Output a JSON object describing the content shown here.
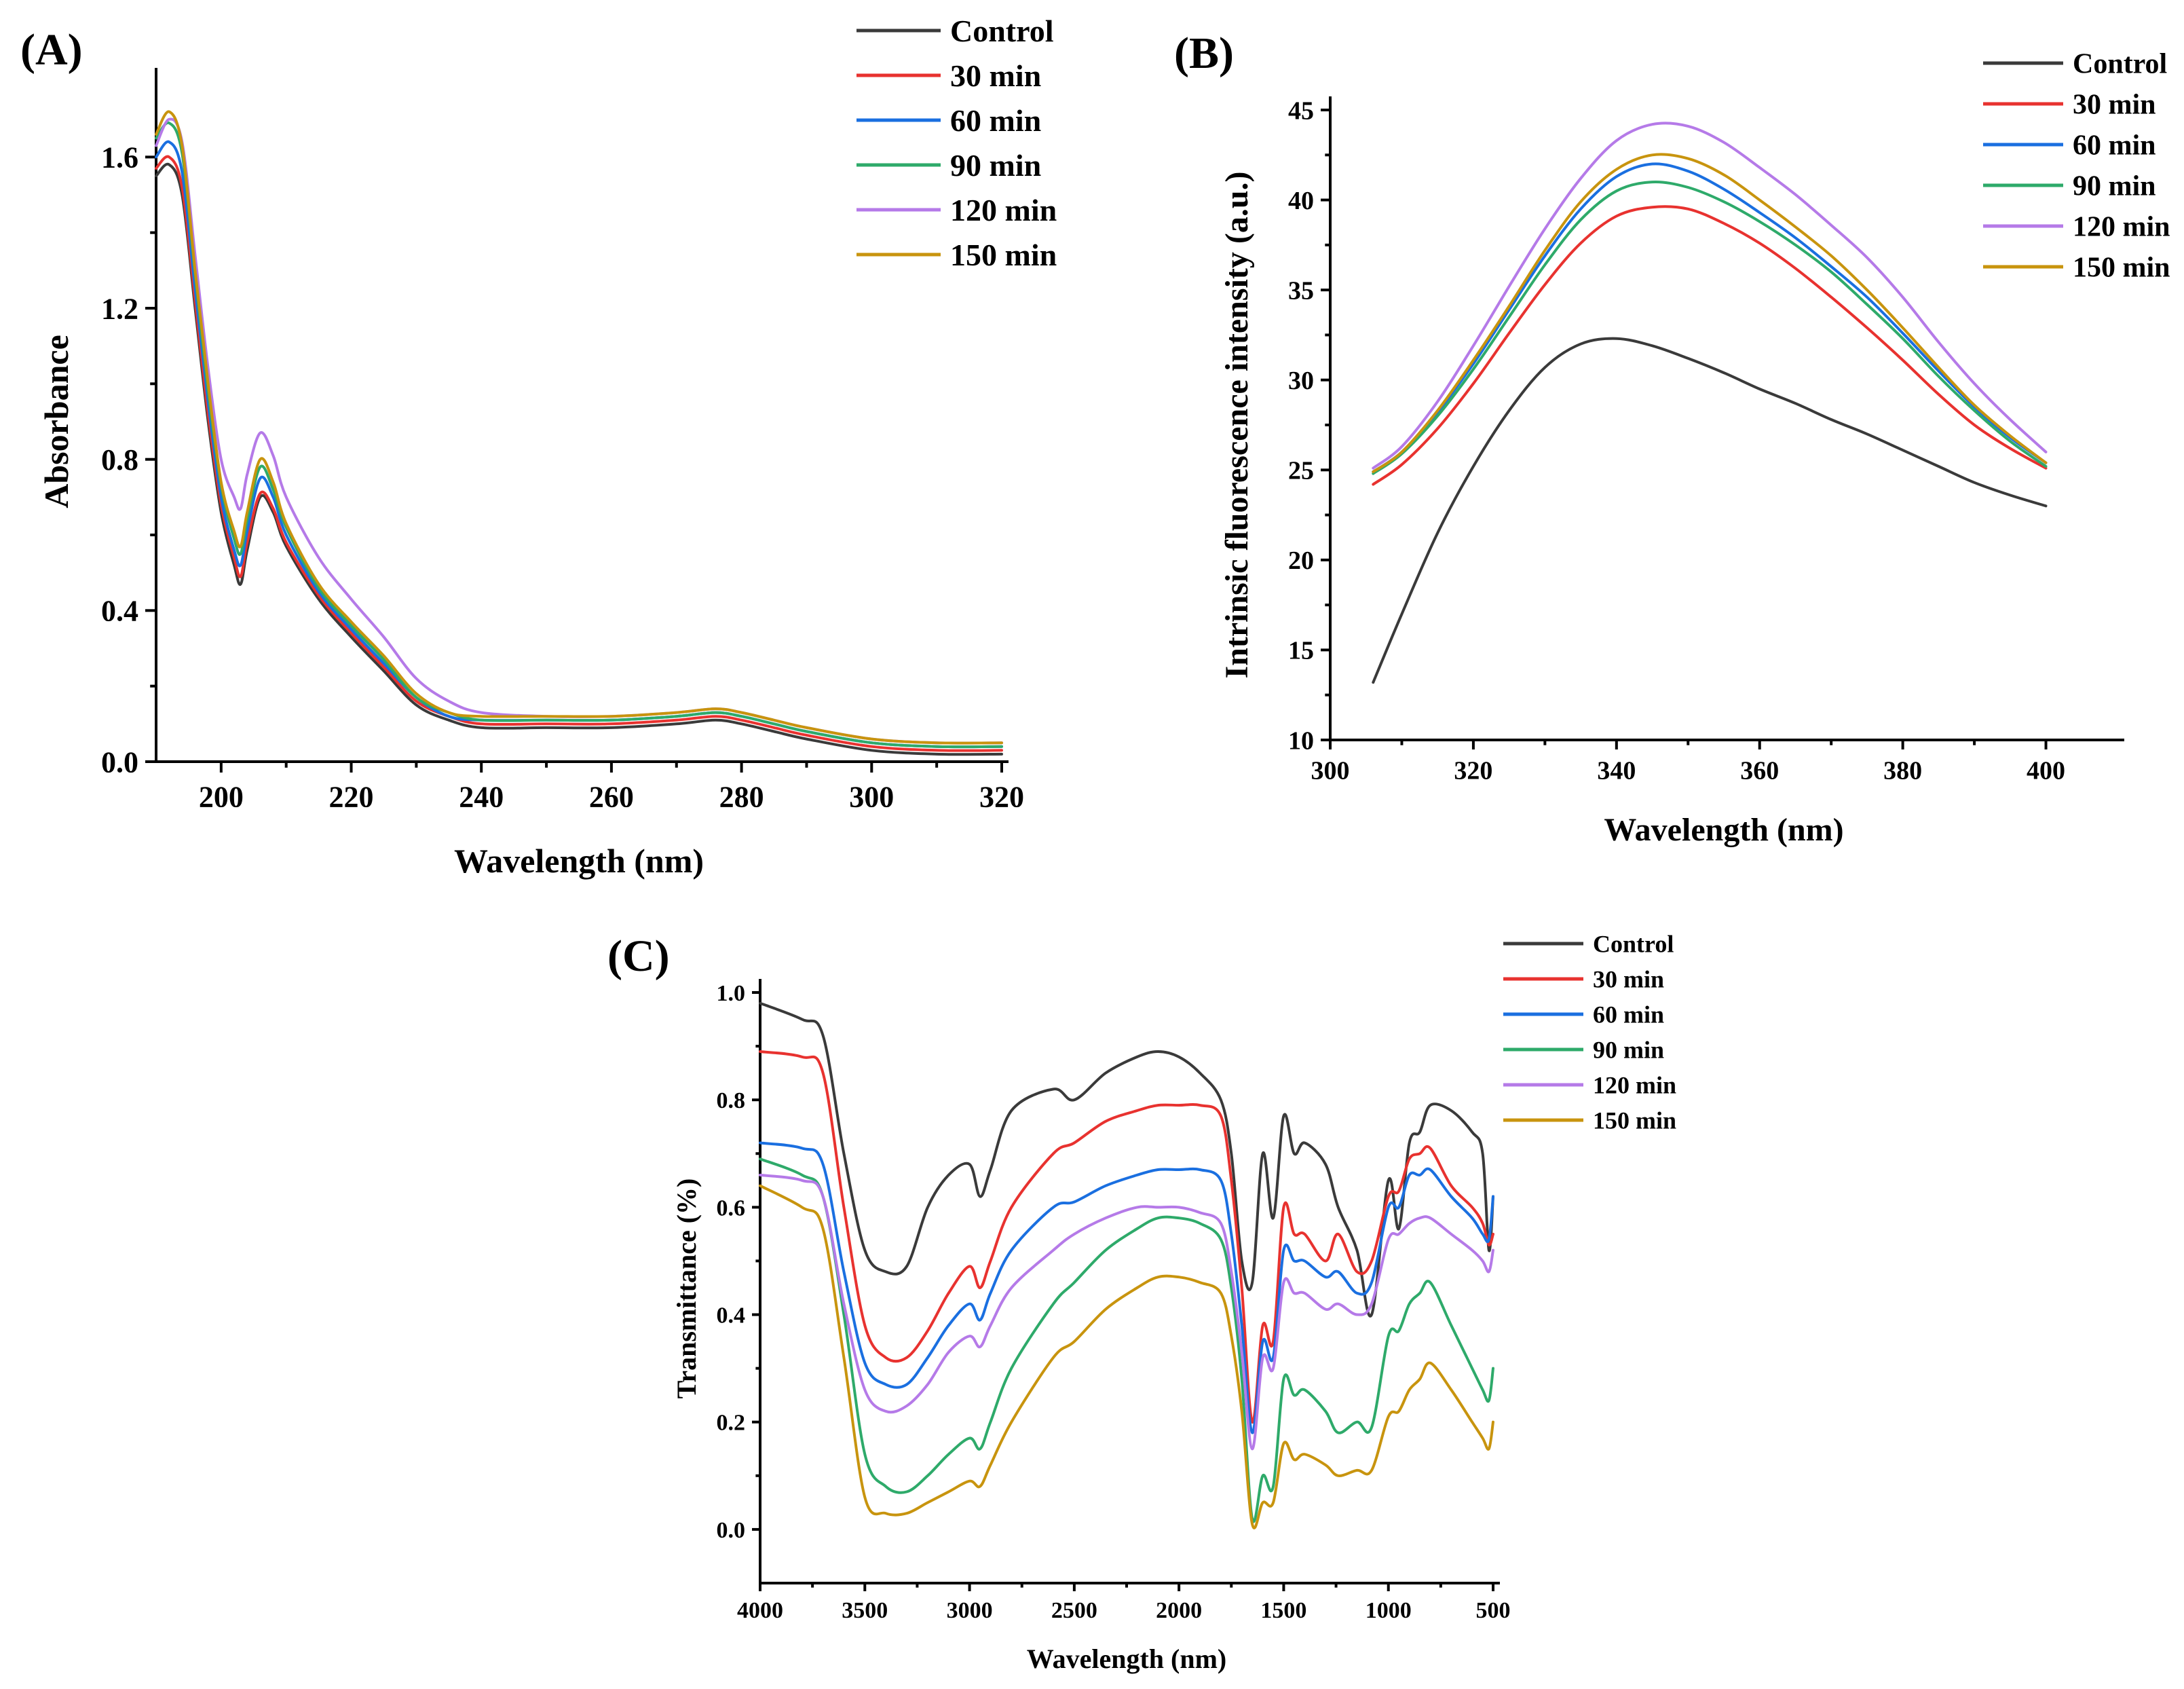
{
  "chart_data": [
    {
      "panel": "(A)",
      "type": "line",
      "xlabel": "Wavelength (nm)",
      "ylabel": "Absorbance",
      "xlim": [
        190,
        320
      ],
      "ylim": [
        0,
        1.8
      ],
      "xticks": [
        200,
        220,
        240,
        260,
        280,
        300,
        320
      ],
      "yticks": [
        0.0,
        0.4,
        0.8,
        1.2,
        1.6
      ],
      "ytick_labels": [
        "0.0",
        "0.4",
        "0.8",
        "1.2",
        "1.6"
      ],
      "x": [
        190,
        192,
        194,
        196,
        198,
        200,
        202,
        203,
        204,
        206,
        208,
        210,
        215,
        220,
        225,
        230,
        235,
        240,
        250,
        260,
        270,
        276,
        280,
        285,
        290,
        300,
        310,
        320
      ],
      "series": [
        {
          "name": "Control",
          "color": "#3a3a3a",
          "values": [
            1.55,
            1.58,
            1.5,
            1.2,
            0.9,
            0.66,
            0.52,
            0.47,
            0.56,
            0.7,
            0.66,
            0.57,
            0.43,
            0.33,
            0.24,
            0.15,
            0.11,
            0.09,
            0.09,
            0.09,
            0.1,
            0.11,
            0.1,
            0.08,
            0.06,
            0.03,
            0.02,
            0.02
          ]
        },
        {
          "name": "30 min",
          "color": "#e8322f",
          "values": [
            1.57,
            1.6,
            1.52,
            1.22,
            0.92,
            0.68,
            0.54,
            0.49,
            0.58,
            0.71,
            0.67,
            0.58,
            0.44,
            0.34,
            0.25,
            0.16,
            0.12,
            0.1,
            0.1,
            0.1,
            0.11,
            0.12,
            0.11,
            0.09,
            0.07,
            0.04,
            0.03,
            0.03
          ]
        },
        {
          "name": "60 min",
          "color": "#1a6fe0",
          "values": [
            1.6,
            1.64,
            1.56,
            1.25,
            0.95,
            0.7,
            0.56,
            0.52,
            0.61,
            0.75,
            0.7,
            0.6,
            0.45,
            0.35,
            0.26,
            0.17,
            0.12,
            0.11,
            0.11,
            0.11,
            0.12,
            0.13,
            0.12,
            0.1,
            0.08,
            0.05,
            0.04,
            0.04
          ]
        },
        {
          "name": "90 min",
          "color": "#2eaa6a",
          "values": [
            1.65,
            1.69,
            1.61,
            1.29,
            0.98,
            0.73,
            0.59,
            0.55,
            0.64,
            0.78,
            0.72,
            0.62,
            0.46,
            0.36,
            0.27,
            0.17,
            0.13,
            0.11,
            0.11,
            0.11,
            0.12,
            0.13,
            0.12,
            0.1,
            0.08,
            0.05,
            0.04,
            0.04
          ]
        },
        {
          "name": "120 min",
          "color": "#b57ae8",
          "values": [
            1.63,
            1.7,
            1.64,
            1.34,
            1.04,
            0.8,
            0.7,
            0.67,
            0.76,
            0.87,
            0.81,
            0.7,
            0.54,
            0.43,
            0.33,
            0.22,
            0.16,
            0.13,
            0.12,
            0.12,
            0.13,
            0.14,
            0.13,
            0.11,
            0.09,
            0.06,
            0.05,
            0.05
          ]
        },
        {
          "name": "150 min",
          "color": "#c8940e",
          "values": [
            1.66,
            1.72,
            1.63,
            1.3,
            1.0,
            0.74,
            0.61,
            0.57,
            0.66,
            0.8,
            0.74,
            0.63,
            0.47,
            0.37,
            0.28,
            0.18,
            0.13,
            0.12,
            0.12,
            0.12,
            0.13,
            0.14,
            0.13,
            0.11,
            0.09,
            0.06,
            0.05,
            0.05
          ]
        }
      ]
    },
    {
      "panel": "(B)",
      "type": "line",
      "xlabel": "Wavelength (nm)",
      "ylabel": "Intrinsic fluorescence intensity (a.u.)",
      "xlim": [
        300,
        410
      ],
      "ylim": [
        10,
        45
      ],
      "xticks": [
        300,
        320,
        340,
        360,
        380,
        400
      ],
      "yticks": [
        10,
        15,
        20,
        25,
        30,
        35,
        40,
        45
      ],
      "x": [
        306,
        310,
        315,
        320,
        325,
        330,
        335,
        340,
        345,
        350,
        355,
        360,
        365,
        370,
        375,
        380,
        385,
        390,
        395,
        400
      ],
      "series": [
        {
          "name": "Control",
          "color": "#3a3a3a",
          "values": [
            13.2,
            17.0,
            21.5,
            25.2,
            28.3,
            30.7,
            32.0,
            32.3,
            31.9,
            31.2,
            30.4,
            29.5,
            28.7,
            27.8,
            27.0,
            26.1,
            25.2,
            24.3,
            23.6,
            23.0
          ]
        },
        {
          "name": "30 min",
          "color": "#e8322f",
          "values": [
            24.2,
            25.3,
            27.3,
            29.8,
            32.6,
            35.3,
            37.6,
            39.1,
            39.6,
            39.5,
            38.7,
            37.6,
            36.2,
            34.6,
            32.9,
            31.1,
            29.2,
            27.5,
            26.2,
            25.1
          ]
        },
        {
          "name": "60 min",
          "color": "#1a6fe0",
          "values": [
            24.9,
            26.0,
            28.2,
            30.9,
            33.9,
            36.9,
            39.5,
            41.3,
            42.0,
            41.6,
            40.6,
            39.3,
            37.9,
            36.3,
            34.6,
            32.6,
            30.5,
            28.5,
            26.8,
            25.4
          ]
        },
        {
          "name": "90 min",
          "color": "#2eaa6a",
          "values": [
            24.8,
            25.9,
            28.0,
            30.6,
            33.5,
            36.4,
            38.9,
            40.5,
            41.0,
            40.7,
            39.9,
            38.8,
            37.5,
            36.0,
            34.2,
            32.3,
            30.2,
            28.3,
            26.6,
            25.2
          ]
        },
        {
          "name": "120 min",
          "color": "#b57ae8",
          "values": [
            25.1,
            26.3,
            28.8,
            31.9,
            35.2,
            38.4,
            41.2,
            43.3,
            44.2,
            44.1,
            43.2,
            41.8,
            40.3,
            38.6,
            36.8,
            34.6,
            32.1,
            29.8,
            27.8,
            26.0
          ]
        },
        {
          "name": "150 min",
          "color": "#c8940e",
          "values": [
            24.9,
            26.0,
            28.3,
            31.1,
            34.1,
            37.2,
            39.9,
            41.7,
            42.5,
            42.3,
            41.4,
            40.0,
            38.5,
            36.9,
            35.0,
            32.9,
            30.7,
            28.6,
            26.9,
            25.4
          ]
        }
      ]
    },
    {
      "panel": "(C)",
      "type": "line",
      "xlabel": "Wavelength (nm)",
      "ylabel": "Transmittance (%)",
      "xlim": [
        4000,
        500
      ],
      "ylim": [
        -0.1,
        1.0
      ],
      "xticks": [
        4000,
        3500,
        3000,
        2500,
        2000,
        1500,
        1000,
        500
      ],
      "yticks": [
        0.0,
        0.2,
        0.4,
        0.6,
        0.8,
        1.0
      ],
      "ytick_labels": [
        "0.0",
        "0.2",
        "0.4",
        "0.6",
        "0.8",
        "1.0"
      ],
      "x": [
        4000,
        3800,
        3700,
        3600,
        3500,
        3400,
        3300,
        3200,
        3100,
        3000,
        2950,
        2900,
        2800,
        2600,
        2500,
        2350,
        2200,
        2100,
        2000,
        1900,
        1800,
        1750,
        1700,
        1650,
        1600,
        1550,
        1500,
        1450,
        1400,
        1300,
        1240,
        1150,
        1080,
        1000,
        950,
        900,
        850,
        800,
        700,
        600,
        550,
        520,
        500
      ],
      "series": [
        {
          "name": "Control",
          "color": "#3a3a3a",
          "values": [
            0.98,
            0.95,
            0.92,
            0.7,
            0.52,
            0.48,
            0.49,
            0.6,
            0.66,
            0.68,
            0.62,
            0.67,
            0.78,
            0.82,
            0.8,
            0.85,
            0.88,
            0.89,
            0.88,
            0.85,
            0.8,
            0.7,
            0.5,
            0.46,
            0.7,
            0.58,
            0.77,
            0.7,
            0.72,
            0.68,
            0.6,
            0.52,
            0.4,
            0.65,
            0.56,
            0.72,
            0.74,
            0.79,
            0.78,
            0.74,
            0.7,
            0.52,
            0.62
          ]
        },
        {
          "name": "30 min",
          "color": "#e8322f",
          "values": [
            0.89,
            0.88,
            0.85,
            0.6,
            0.38,
            0.32,
            0.32,
            0.37,
            0.44,
            0.49,
            0.45,
            0.5,
            0.6,
            0.7,
            0.72,
            0.76,
            0.78,
            0.79,
            0.79,
            0.79,
            0.77,
            0.65,
            0.45,
            0.2,
            0.38,
            0.35,
            0.6,
            0.55,
            0.55,
            0.5,
            0.55,
            0.48,
            0.5,
            0.62,
            0.63,
            0.69,
            0.7,
            0.71,
            0.64,
            0.6,
            0.57,
            0.53,
            0.55
          ]
        },
        {
          "name": "60 min",
          "color": "#1a6fe0",
          "values": [
            0.72,
            0.71,
            0.68,
            0.48,
            0.31,
            0.27,
            0.27,
            0.32,
            0.38,
            0.42,
            0.39,
            0.44,
            0.52,
            0.6,
            0.61,
            0.64,
            0.66,
            0.67,
            0.67,
            0.67,
            0.65,
            0.55,
            0.38,
            0.18,
            0.35,
            0.32,
            0.52,
            0.5,
            0.5,
            0.47,
            0.48,
            0.44,
            0.46,
            0.6,
            0.6,
            0.66,
            0.66,
            0.67,
            0.62,
            0.58,
            0.55,
            0.54,
            0.62
          ]
        },
        {
          "name": "90 min",
          "color": "#2eaa6a",
          "values": [
            0.69,
            0.66,
            0.62,
            0.4,
            0.14,
            0.08,
            0.07,
            0.1,
            0.14,
            0.17,
            0.15,
            0.2,
            0.3,
            0.42,
            0.46,
            0.52,
            0.56,
            0.58,
            0.58,
            0.57,
            0.54,
            0.45,
            0.28,
            0.02,
            0.1,
            0.08,
            0.28,
            0.25,
            0.26,
            0.22,
            0.18,
            0.2,
            0.19,
            0.36,
            0.37,
            0.42,
            0.44,
            0.46,
            0.38,
            0.3,
            0.26,
            0.24,
            0.3
          ]
        },
        {
          "name": "120 min",
          "color": "#b57ae8",
          "values": [
            0.66,
            0.65,
            0.62,
            0.42,
            0.26,
            0.22,
            0.23,
            0.27,
            0.33,
            0.36,
            0.34,
            0.38,
            0.45,
            0.52,
            0.55,
            0.58,
            0.6,
            0.6,
            0.6,
            0.59,
            0.57,
            0.48,
            0.33,
            0.15,
            0.32,
            0.3,
            0.46,
            0.44,
            0.44,
            0.41,
            0.42,
            0.4,
            0.42,
            0.54,
            0.55,
            0.57,
            0.58,
            0.58,
            0.55,
            0.52,
            0.5,
            0.48,
            0.52
          ]
        },
        {
          "name": "150 min",
          "color": "#c8940e",
          "values": [
            0.64,
            0.6,
            0.56,
            0.32,
            0.06,
            0.03,
            0.03,
            0.05,
            0.07,
            0.09,
            0.08,
            0.12,
            0.2,
            0.32,
            0.35,
            0.41,
            0.45,
            0.47,
            0.47,
            0.46,
            0.44,
            0.36,
            0.22,
            0.01,
            0.05,
            0.05,
            0.16,
            0.13,
            0.14,
            0.12,
            0.1,
            0.11,
            0.11,
            0.21,
            0.22,
            0.26,
            0.28,
            0.31,
            0.26,
            0.2,
            0.17,
            0.15,
            0.2
          ]
        }
      ]
    }
  ]
}
